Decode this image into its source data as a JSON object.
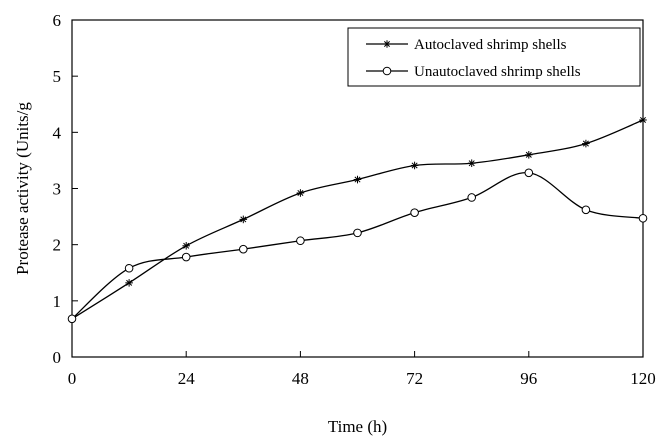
{
  "chart_data": {
    "type": "line",
    "xlabel": "Time (h)",
    "ylabel": "Protease activity (Units/g",
    "xlim": [
      0,
      120
    ],
    "ylim": [
      0,
      6
    ],
    "xticks": [
      0,
      24,
      48,
      72,
      96,
      120
    ],
    "yticks": [
      0,
      1,
      2,
      3,
      4,
      5,
      6
    ],
    "grid": false,
    "legend_position": "top-right",
    "series": [
      {
        "name": "Autoclaved shrimp shells",
        "marker": "asterisk",
        "color": "#000000",
        "x": [
          0,
          12,
          24,
          36,
          48,
          60,
          72,
          84,
          96,
          108,
          120
        ],
        "y": [
          0.68,
          1.32,
          1.98,
          2.45,
          2.92,
          3.16,
          3.41,
          3.45,
          3.6,
          3.8,
          4.22
        ]
      },
      {
        "name": "Unautoclaved shrimp shells",
        "marker": "circle",
        "color": "#000000",
        "x": [
          0,
          12,
          24,
          36,
          48,
          60,
          72,
          84,
          96,
          108,
          120
        ],
        "y": [
          0.68,
          1.58,
          1.78,
          1.92,
          2.07,
          2.21,
          2.57,
          2.84,
          3.28,
          2.62,
          2.47
        ]
      }
    ]
  }
}
